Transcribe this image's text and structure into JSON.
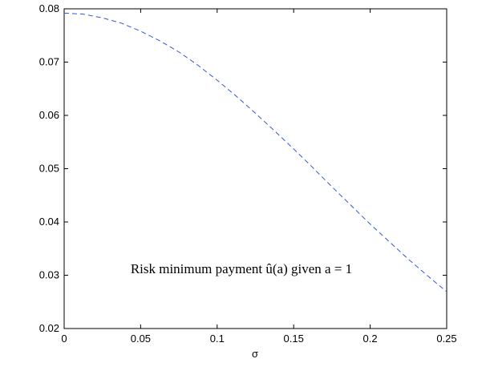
{
  "chart_data": {
    "type": "line",
    "xlabel": "σ",
    "annotation": "Risk minimum payment  û(a)  given a = 1",
    "x": [
      0,
      0.0125,
      0.025,
      0.0375,
      0.05,
      0.0625,
      0.075,
      0.0875,
      0.1,
      0.1125,
      0.125,
      0.1375,
      0.15,
      0.1625,
      0.175,
      0.1875,
      0.2,
      0.2125,
      0.225,
      0.2375,
      0.25
    ],
    "series": [
      {
        "color": "#3355dd",
        "values": [
          0.0792,
          0.079,
          0.0783,
          0.0773,
          0.0758,
          0.074,
          0.0719,
          0.0694,
          0.0666,
          0.0636,
          0.0604,
          0.0571,
          0.0537,
          0.0502,
          0.0466,
          0.0431,
          0.0396,
          0.0363,
          0.033,
          0.0299,
          0.0269
        ]
      }
    ],
    "xlim": [
      0,
      0.25
    ],
    "xticks": [
      0,
      0.05,
      0.1,
      0.15,
      0.2,
      0.25
    ],
    "ylim": [
      0.02,
      0.08
    ],
    "yticks": [
      0.02,
      0.03,
      0.04,
      0.05,
      0.06,
      0.07,
      0.08
    ],
    "line_style": "dashed",
    "grid": false
  }
}
